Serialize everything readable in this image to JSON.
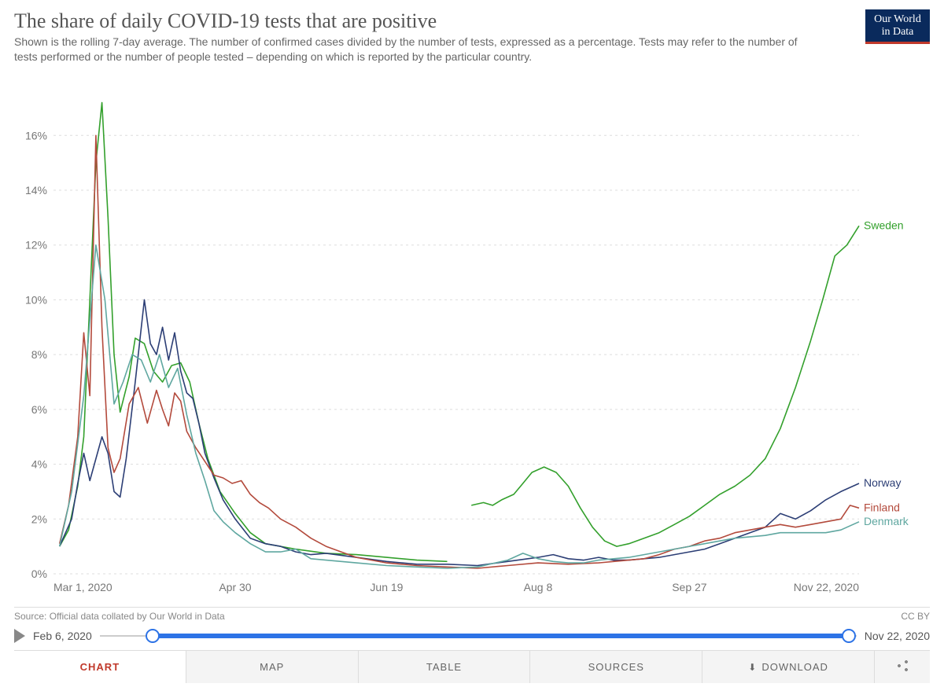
{
  "title": "The share of daily COVID-19 tests that are positive",
  "subtitle": "Shown is the rolling 7-day average. The number of confirmed cases divided by the number of tests, expressed as a percentage. Tests may refer to the number of tests performed or the number of people tested – depending on which is reported by the particular country.",
  "logo": {
    "line1": "Our World",
    "line2": "in Data"
  },
  "source": "Source: Official data collated by Our World in Data",
  "license": "CC BY",
  "chart": {
    "type": "line",
    "background_color": "#ffffff",
    "grid_color": "#dddddd",
    "grid_dash": "3 4",
    "axis_text_color": "#777777",
    "axis_font_family": "Helvetica, Arial, sans-serif",
    "axis_fontsize": 14,
    "xlim": [
      0,
      266
    ],
    "ylim": [
      0,
      17.5
    ],
    "ytick_values": [
      0,
      2,
      4,
      6,
      8,
      10,
      12,
      14,
      16
    ],
    "ytick_labels": [
      "0%",
      "2%",
      "4%",
      "6%",
      "8%",
      "10%",
      "12%",
      "14%",
      "16%"
    ],
    "xtick_positions": [
      0,
      60,
      110,
      160,
      210,
      266
    ],
    "xtick_labels": [
      "Mar 1, 2020",
      "Apr 30",
      "Jun 19",
      "Aug 8",
      "Sep 27",
      "Nov 22, 2020"
    ],
    "line_width": 1.6,
    "series": [
      {
        "name": "Sweden",
        "color": "#33a02c",
        "label_y": 12.7,
        "data": [
          [
            2,
            1.0
          ],
          [
            5,
            1.6
          ],
          [
            8,
            3.2
          ],
          [
            10,
            5.0
          ],
          [
            12,
            10.0
          ],
          [
            14,
            15.0
          ],
          [
            16,
            17.2
          ],
          [
            18,
            13.0
          ],
          [
            20,
            8.0
          ],
          [
            22,
            5.9
          ],
          [
            25,
            7.2
          ],
          [
            27,
            8.6
          ],
          [
            30,
            8.4
          ],
          [
            33,
            7.4
          ],
          [
            36,
            7.0
          ],
          [
            39,
            7.6
          ],
          [
            42,
            7.7
          ],
          [
            45,
            7.0
          ],
          [
            48,
            5.5
          ],
          [
            51,
            4.2
          ],
          [
            55,
            3.0
          ],
          [
            60,
            2.2
          ],
          [
            65,
            1.5
          ],
          [
            70,
            1.1
          ],
          [
            80,
            0.9
          ],
          [
            90,
            0.75
          ],
          [
            100,
            0.7
          ],
          [
            110,
            0.6
          ],
          [
            120,
            0.5
          ],
          [
            130,
            0.45
          ]
        ],
        "data_gap": true,
        "data2": [
          [
            138,
            2.5
          ],
          [
            142,
            2.6
          ],
          [
            145,
            2.5
          ],
          [
            148,
            2.7
          ],
          [
            152,
            2.9
          ],
          [
            155,
            3.3
          ],
          [
            158,
            3.7
          ],
          [
            162,
            3.9
          ],
          [
            166,
            3.7
          ],
          [
            170,
            3.2
          ],
          [
            174,
            2.4
          ],
          [
            178,
            1.7
          ],
          [
            182,
            1.2
          ],
          [
            186,
            1.0
          ],
          [
            190,
            1.1
          ],
          [
            195,
            1.3
          ],
          [
            200,
            1.5
          ],
          [
            205,
            1.8
          ],
          [
            210,
            2.1
          ],
          [
            215,
            2.5
          ],
          [
            220,
            2.9
          ],
          [
            225,
            3.2
          ],
          [
            230,
            3.6
          ],
          [
            235,
            4.2
          ],
          [
            240,
            5.3
          ],
          [
            245,
            6.8
          ],
          [
            250,
            8.5
          ],
          [
            254,
            10.0
          ],
          [
            258,
            11.6
          ],
          [
            262,
            12.0
          ],
          [
            266,
            12.7
          ]
        ]
      },
      {
        "name": "Norway",
        "color": "#2c3e75",
        "label_y": 3.3,
        "data": [
          [
            2,
            1.0
          ],
          [
            6,
            2.0
          ],
          [
            8,
            3.3
          ],
          [
            10,
            4.4
          ],
          [
            12,
            3.4
          ],
          [
            14,
            4.2
          ],
          [
            16,
            5.0
          ],
          [
            18,
            4.4
          ],
          [
            20,
            3.0
          ],
          [
            22,
            2.8
          ],
          [
            24,
            4.2
          ],
          [
            27,
            7.0
          ],
          [
            30,
            10.0
          ],
          [
            32,
            8.4
          ],
          [
            34,
            8.0
          ],
          [
            36,
            9.0
          ],
          [
            38,
            7.8
          ],
          [
            40,
            8.8
          ],
          [
            42,
            7.4
          ],
          [
            44,
            6.6
          ],
          [
            46,
            6.4
          ],
          [
            48,
            5.5
          ],
          [
            50,
            4.4
          ],
          [
            53,
            3.5
          ],
          [
            56,
            2.7
          ],
          [
            60,
            2.0
          ],
          [
            65,
            1.3
          ],
          [
            70,
            1.1
          ],
          [
            75,
            1.0
          ],
          [
            80,
            0.8
          ],
          [
            85,
            0.7
          ],
          [
            90,
            0.75
          ],
          [
            100,
            0.6
          ],
          [
            110,
            0.45
          ],
          [
            120,
            0.35
          ],
          [
            130,
            0.35
          ],
          [
            140,
            0.3
          ],
          [
            150,
            0.45
          ],
          [
            160,
            0.6
          ],
          [
            165,
            0.7
          ],
          [
            170,
            0.55
          ],
          [
            175,
            0.5
          ],
          [
            180,
            0.6
          ],
          [
            185,
            0.5
          ],
          [
            190,
            0.5
          ],
          [
            195,
            0.55
          ],
          [
            200,
            0.6
          ],
          [
            205,
            0.7
          ],
          [
            210,
            0.8
          ],
          [
            215,
            0.9
          ],
          [
            220,
            1.1
          ],
          [
            225,
            1.3
          ],
          [
            230,
            1.5
          ],
          [
            235,
            1.7
          ],
          [
            240,
            2.2
          ],
          [
            245,
            2.0
          ],
          [
            250,
            2.3
          ],
          [
            255,
            2.7
          ],
          [
            260,
            3.0
          ],
          [
            266,
            3.3
          ]
        ]
      },
      {
        "name": "Finland",
        "color": "#b34a3c",
        "label_y": 2.4,
        "data": [
          [
            2,
            1.1
          ],
          [
            5,
            2.5
          ],
          [
            8,
            5.0
          ],
          [
            10,
            8.8
          ],
          [
            12,
            6.5
          ],
          [
            14,
            16.0
          ],
          [
            16,
            9.0
          ],
          [
            18,
            4.6
          ],
          [
            20,
            3.7
          ],
          [
            22,
            4.2
          ],
          [
            25,
            6.2
          ],
          [
            28,
            6.8
          ],
          [
            31,
            5.5
          ],
          [
            34,
            6.7
          ],
          [
            36,
            6.0
          ],
          [
            38,
            5.4
          ],
          [
            40,
            6.6
          ],
          [
            42,
            6.3
          ],
          [
            44,
            5.2
          ],
          [
            47,
            4.6
          ],
          [
            50,
            4.1
          ],
          [
            53,
            3.6
          ],
          [
            56,
            3.5
          ],
          [
            59,
            3.3
          ],
          [
            62,
            3.4
          ],
          [
            65,
            2.9
          ],
          [
            68,
            2.6
          ],
          [
            71,
            2.4
          ],
          [
            75,
            2.0
          ],
          [
            80,
            1.7
          ],
          [
            85,
            1.3
          ],
          [
            90,
            1.0
          ],
          [
            95,
            0.8
          ],
          [
            100,
            0.6
          ],
          [
            110,
            0.4
          ],
          [
            120,
            0.3
          ],
          [
            130,
            0.25
          ],
          [
            140,
            0.2
          ],
          [
            150,
            0.3
          ],
          [
            160,
            0.4
          ],
          [
            170,
            0.35
          ],
          [
            180,
            0.4
          ],
          [
            185,
            0.45
          ],
          [
            190,
            0.5
          ],
          [
            195,
            0.55
          ],
          [
            200,
            0.7
          ],
          [
            205,
            0.9
          ],
          [
            210,
            1.0
          ],
          [
            215,
            1.2
          ],
          [
            220,
            1.3
          ],
          [
            225,
            1.5
          ],
          [
            230,
            1.6
          ],
          [
            235,
            1.7
          ],
          [
            240,
            1.8
          ],
          [
            245,
            1.7
          ],
          [
            250,
            1.8
          ],
          [
            255,
            1.9
          ],
          [
            260,
            2.0
          ],
          [
            263,
            2.5
          ],
          [
            266,
            2.4
          ]
        ]
      },
      {
        "name": "Denmark",
        "color": "#5fa7a0",
        "label_y": 1.9,
        "data": [
          [
            2,
            1.0
          ],
          [
            6,
            3.0
          ],
          [
            10,
            6.5
          ],
          [
            14,
            12.0
          ],
          [
            17,
            10.0
          ],
          [
            20,
            6.2
          ],
          [
            23,
            7.0
          ],
          [
            26,
            8.0
          ],
          [
            29,
            7.8
          ],
          [
            32,
            7.0
          ],
          [
            35,
            8.0
          ],
          [
            38,
            6.8
          ],
          [
            41,
            7.5
          ],
          [
            44,
            5.8
          ],
          [
            47,
            4.4
          ],
          [
            50,
            3.4
          ],
          [
            53,
            2.3
          ],
          [
            56,
            1.9
          ],
          [
            60,
            1.5
          ],
          [
            65,
            1.1
          ],
          [
            70,
            0.8
          ],
          [
            75,
            0.8
          ],
          [
            80,
            0.9
          ],
          [
            85,
            0.55
          ],
          [
            90,
            0.5
          ],
          [
            100,
            0.4
          ],
          [
            110,
            0.3
          ],
          [
            120,
            0.25
          ],
          [
            130,
            0.2
          ],
          [
            140,
            0.25
          ],
          [
            150,
            0.5
          ],
          [
            155,
            0.75
          ],
          [
            160,
            0.55
          ],
          [
            165,
            0.45
          ],
          [
            170,
            0.4
          ],
          [
            175,
            0.4
          ],
          [
            180,
            0.5
          ],
          [
            185,
            0.55
          ],
          [
            190,
            0.6
          ],
          [
            195,
            0.7
          ],
          [
            200,
            0.8
          ],
          [
            205,
            0.9
          ],
          [
            210,
            1.0
          ],
          [
            215,
            1.1
          ],
          [
            220,
            1.2
          ],
          [
            225,
            1.3
          ],
          [
            230,
            1.35
          ],
          [
            235,
            1.4
          ],
          [
            240,
            1.5
          ],
          [
            245,
            1.5
          ],
          [
            250,
            1.5
          ],
          [
            255,
            1.5
          ],
          [
            260,
            1.6
          ],
          [
            266,
            1.9
          ]
        ]
      }
    ]
  },
  "timeline": {
    "start_label": "Feb 6, 2020",
    "end_label": "Nov 22, 2020",
    "handle_start_pct": 7,
    "handle_end_pct": 99
  },
  "tabs": {
    "chart": "CHART",
    "map": "MAP",
    "table": "TABLE",
    "sources": "SOURCES",
    "download": "DOWNLOAD"
  }
}
